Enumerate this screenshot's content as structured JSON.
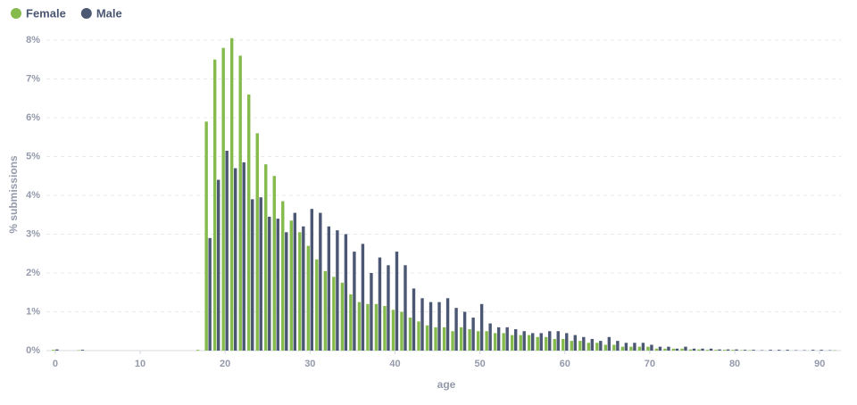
{
  "chart_data": {
    "type": "grouped-bar",
    "xlabel": "age",
    "ylabel": "% submissions",
    "x": [
      0,
      1,
      2,
      3,
      4,
      5,
      6,
      7,
      8,
      9,
      10,
      11,
      12,
      13,
      14,
      15,
      16,
      17,
      18,
      19,
      20,
      21,
      22,
      23,
      24,
      25,
      26,
      27,
      28,
      29,
      30,
      31,
      32,
      33,
      34,
      35,
      36,
      37,
      38,
      39,
      40,
      41,
      42,
      43,
      44,
      45,
      46,
      47,
      48,
      49,
      50,
      51,
      52,
      53,
      54,
      55,
      56,
      57,
      58,
      59,
      60,
      61,
      62,
      63,
      64,
      65,
      66,
      67,
      68,
      69,
      70,
      71,
      72,
      73,
      74,
      75,
      76,
      77,
      78,
      79,
      80,
      81,
      82,
      83,
      84,
      85,
      86,
      87,
      88,
      89,
      90,
      91,
      92
    ],
    "series": [
      {
        "name": "Female",
        "color": "#84bb4c",
        "values": [
          0.02,
          0,
          0,
          0.01,
          0,
          0,
          0,
          0,
          0,
          0,
          0,
          0,
          0,
          0,
          0,
          0,
          0,
          0.02,
          5.9,
          7.5,
          7.8,
          8.05,
          7.6,
          6.6,
          5.6,
          4.8,
          4.5,
          3.85,
          3.35,
          3.05,
          2.7,
          2.35,
          2.05,
          1.9,
          1.75,
          1.45,
          1.25,
          1.2,
          1.2,
          1.15,
          1.05,
          1.0,
          0.85,
          0.75,
          0.65,
          0.6,
          0.6,
          0.5,
          0.6,
          0.55,
          0.5,
          0.5,
          0.45,
          0.45,
          0.4,
          0.4,
          0.4,
          0.35,
          0.35,
          0.3,
          0.3,
          0.25,
          0.25,
          0.2,
          0.2,
          0.15,
          0.15,
          0.1,
          0.1,
          0.1,
          0.1,
          0.05,
          0.05,
          0.05,
          0.05,
          0.03,
          0.03,
          0.02,
          0.02,
          0.02,
          0.02,
          0.01,
          0.01,
          0,
          0,
          0,
          0,
          0,
          0,
          0,
          0,
          0,
          0.01
        ]
      },
      {
        "name": "Male",
        "color": "#4c5773",
        "values": [
          0.03,
          0,
          0,
          0.02,
          0,
          0,
          0,
          0,
          0,
          0,
          0,
          0,
          0,
          0,
          0,
          0,
          0,
          0,
          2.9,
          4.4,
          5.15,
          4.7,
          4.85,
          3.9,
          3.95,
          3.45,
          3.4,
          3.05,
          3.55,
          3.2,
          3.65,
          3.55,
          3.2,
          3.1,
          3.0,
          2.55,
          2.75,
          2.0,
          2.4,
          2.2,
          2.55,
          2.2,
          1.6,
          1.35,
          1.25,
          1.25,
          1.35,
          1.1,
          1.0,
          0.85,
          1.2,
          0.7,
          0.6,
          0.6,
          0.55,
          0.5,
          0.45,
          0.45,
          0.5,
          0.5,
          0.45,
          0.4,
          0.35,
          0.3,
          0.25,
          0.35,
          0.25,
          0.2,
          0.2,
          0.2,
          0.15,
          0.1,
          0.1,
          0.05,
          0.1,
          0.05,
          0.05,
          0.05,
          0.03,
          0.03,
          0.03,
          0.02,
          0.02,
          0.01,
          0.02,
          0.02,
          0.02,
          0.01,
          0.01,
          0.02,
          0.02,
          0.01,
          0
        ]
      }
    ],
    "xlim": [
      -2.3,
      92.5
    ],
    "xticks": [
      0,
      10,
      20,
      30,
      40,
      50,
      60,
      70,
      80,
      90
    ],
    "ylim": [
      0,
      8.2
    ],
    "yticks": [
      {
        "value": 0,
        "label": "0%"
      },
      {
        "value": 1,
        "label": "1%"
      },
      {
        "value": 2,
        "label": "2%"
      },
      {
        "value": 3,
        "label": "3%"
      },
      {
        "value": 4,
        "label": "4%"
      },
      {
        "value": 5,
        "label": "5%"
      },
      {
        "value": 6,
        "label": "6%"
      },
      {
        "value": 7,
        "label": "7%"
      },
      {
        "value": 8,
        "label": "8%"
      }
    ],
    "grid": true,
    "legend": "top-left"
  }
}
